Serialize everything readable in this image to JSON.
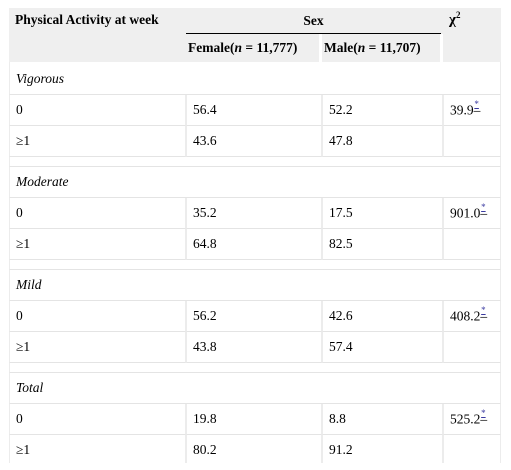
{
  "header": {
    "physical_activity": "Physical Activity at week",
    "sex": "Sex",
    "chi_symbol": "χ",
    "chi_power": "2",
    "female": "Female(",
    "female_n": "n",
    "female_count": " = 11,777)",
    "male": "Male(",
    "male_n": "n",
    "male_count": " = 11,707)"
  },
  "groups": [
    {
      "name": "Vigorous",
      "rows": [
        {
          "label": "0",
          "female": "56.4",
          "male": "52.2",
          "chi": "39.9",
          "star": "*",
          "dash": "–"
        },
        {
          "label": "≥1",
          "female": "43.6",
          "male": "47.8",
          "chi": "",
          "star": "",
          "dash": ""
        }
      ]
    },
    {
      "name": "Moderate",
      "rows": [
        {
          "label": "0",
          "female": "35.2",
          "male": "17.5",
          "chi": "901.0",
          "star": "*",
          "dash": "–"
        },
        {
          "label": "≥1",
          "female": "64.8",
          "male": "82.5",
          "chi": "",
          "star": "",
          "dash": ""
        }
      ]
    },
    {
      "name": "Mild",
      "rows": [
        {
          "label": "0",
          "female": "56.2",
          "male": "42.6",
          "chi": "408.2",
          "star": "*",
          "dash": "–"
        },
        {
          "label": "≥1",
          "female": "43.8",
          "male": "57.4",
          "chi": "",
          "star": "",
          "dash": ""
        }
      ]
    },
    {
      "name": "Total",
      "rows": [
        {
          "label": "0",
          "female": "19.8",
          "male": "8.8",
          "chi": "525.2",
          "star": "*",
          "dash": "–"
        },
        {
          "label": "≥1",
          "female": "80.2",
          "male": "91.2",
          "chi": "",
          "star": "",
          "dash": ""
        }
      ]
    }
  ]
}
